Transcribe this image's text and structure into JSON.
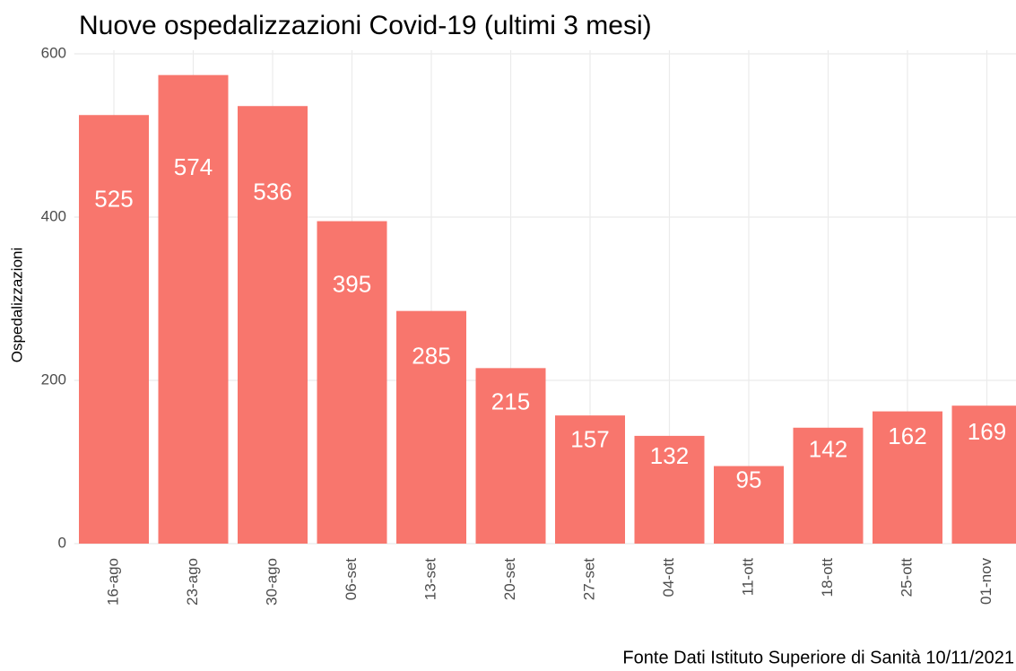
{
  "chart_data": {
    "type": "bar",
    "title": "Nuove ospedalizzazioni Covid-19 (ultimi 3 mesi)",
    "y_label": "Ospedalizzazioni",
    "caption": "Fonte Dati Istituto Superiore di Sanità 10/11/2021",
    "categories": [
      "16-ago",
      "23-ago",
      "30-ago",
      "06-set",
      "13-set",
      "20-set",
      "27-set",
      "04-ott",
      "11-ott",
      "18-ott",
      "25-ott",
      "01-nov"
    ],
    "values": [
      525,
      574,
      536,
      395,
      285,
      215,
      157,
      132,
      95,
      142,
      162,
      169
    ],
    "color": "#f8766d",
    "ylim": [
      0,
      600
    ],
    "yticks": [
      0,
      200,
      400,
      600
    ],
    "grid": true
  }
}
